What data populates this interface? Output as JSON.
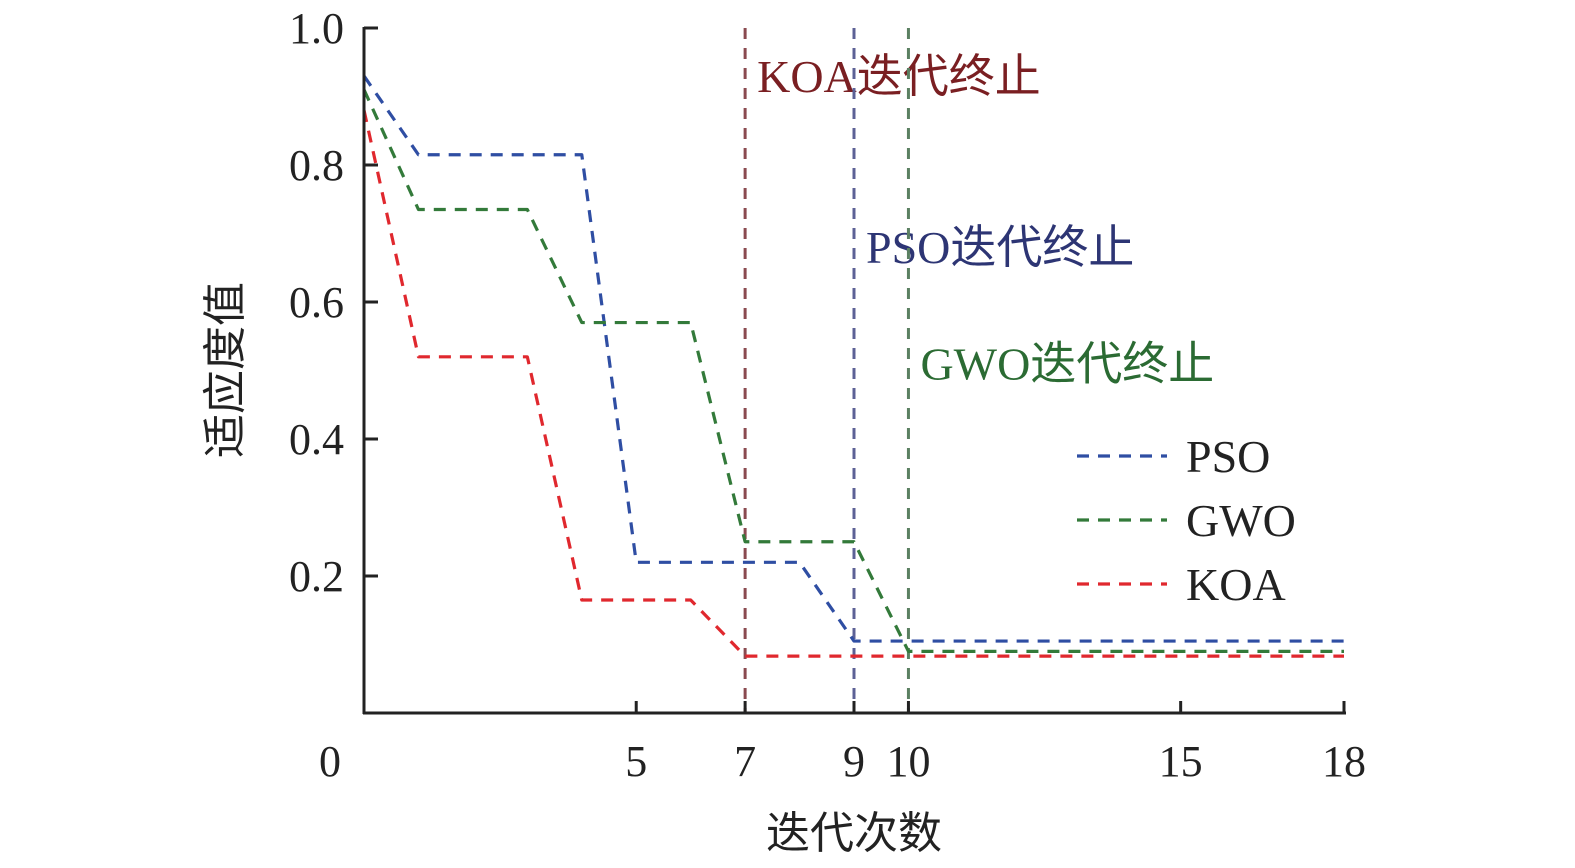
{
  "chart_data": {
    "type": "line",
    "title": "",
    "xlabel": "迭代次数",
    "ylabel": "适应度值",
    "xlim": [
      0,
      18
    ],
    "ylim": [
      0,
      1.0
    ],
    "x_ticks": [
      0,
      5,
      7,
      9,
      10,
      15,
      18
    ],
    "x_tick_labels": [
      "0",
      "5",
      "7",
      "9",
      "10",
      "15",
      "18"
    ],
    "y_ticks": [
      0.2,
      0.4,
      0.6,
      0.8,
      1.0
    ],
    "y_tick_labels": [
      "0.2",
      "0.4",
      "0.6",
      "0.8",
      "1.0"
    ],
    "grid": false,
    "legend_position": "right",
    "line_style": "dashed",
    "series": [
      {
        "name": "PSO",
        "color": "#2f4ea3",
        "x": [
          0,
          1,
          4,
          5,
          8,
          9,
          18
        ],
        "y": [
          0.93,
          0.815,
          0.815,
          0.22,
          0.22,
          0.105,
          0.105
        ]
      },
      {
        "name": "GWO",
        "color": "#337a3a",
        "x": [
          0,
          1,
          3,
          4,
          6,
          7,
          9,
          10,
          18
        ],
        "y": [
          0.91,
          0.735,
          0.735,
          0.57,
          0.57,
          0.25,
          0.25,
          0.09,
          0.09
        ]
      },
      {
        "name": "KOA",
        "color": "#e0282e",
        "x": [
          0,
          1,
          3,
          4,
          6,
          7,
          18
        ],
        "y": [
          0.88,
          0.52,
          0.52,
          0.165,
          0.165,
          0.083,
          0.083
        ]
      }
    ],
    "annotations": [
      {
        "x": 7,
        "text": "KOA迭代终止",
        "line_color": "#8a4a50",
        "text_color": "#7a1f22",
        "label_y": 0.93
      },
      {
        "x": 9,
        "text": "PSO迭代终止",
        "line_color": "#5c6196",
        "text_color": "#2d3574",
        "label_y": 0.68
      },
      {
        "x": 10,
        "text": "GWO迭代终止",
        "line_color": "#5b8062",
        "text_color": "#2b6b33",
        "label_y": 0.51
      }
    ]
  }
}
